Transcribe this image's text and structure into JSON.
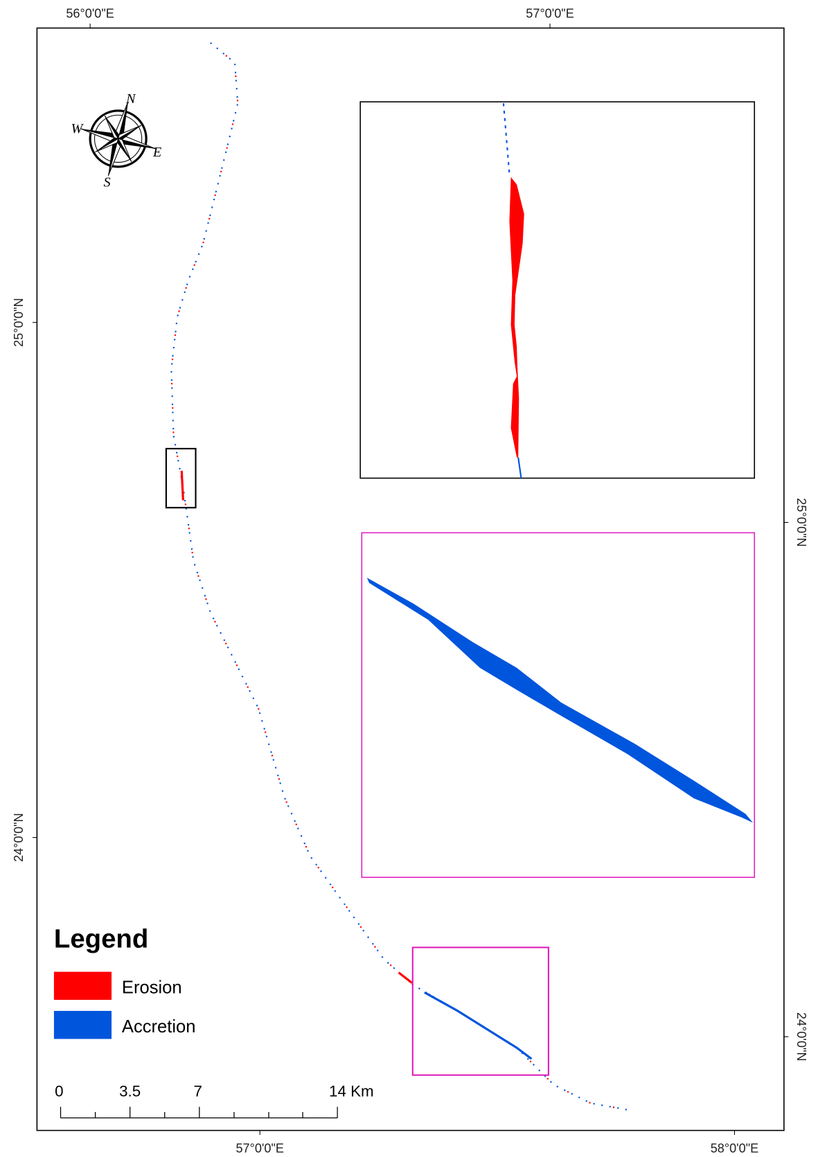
{
  "map": {
    "graticule": {
      "top": [
        "56°0'0\"E",
        "57°0'0\"E"
      ],
      "bottom": [
        "57°0'0\"E",
        "58°0'0\"E"
      ],
      "left": [
        "25°0'0\"N",
        "24°0'0\"N"
      ],
      "right": [
        "25°0'0\"N",
        "24°0'0\"N"
      ]
    },
    "compass": {
      "north": "N",
      "east": "E",
      "south": "S",
      "west": "W"
    },
    "legend": {
      "title": "Legend",
      "items": [
        {
          "label": "Erosion",
          "color": "#ff0000"
        },
        {
          "label": "Accretion",
          "color": "#0055dd"
        }
      ]
    },
    "scale_bar": {
      "labels": [
        "0",
        "3.5",
        "7",
        "14 Km"
      ]
    }
  }
}
